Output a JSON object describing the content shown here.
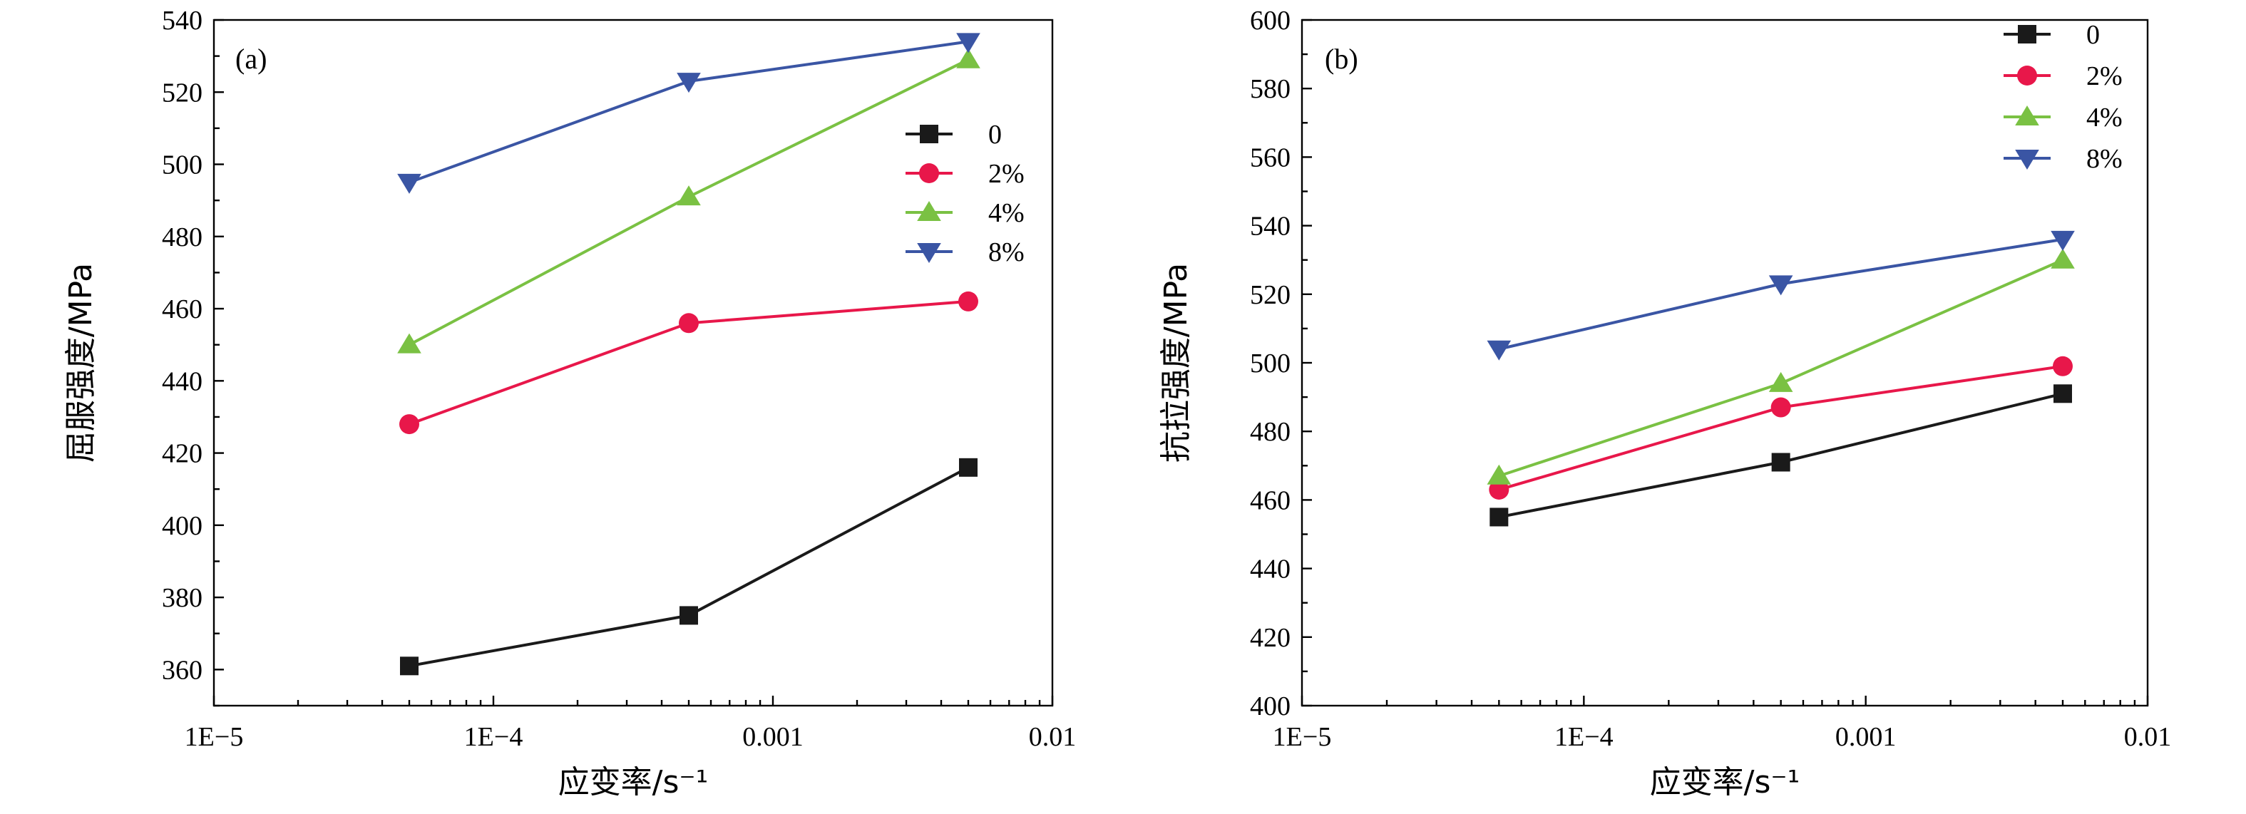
{
  "chart_data": [
    {
      "type": "line",
      "panel_label": "(a)",
      "xlabel": "应变率/s⁻¹",
      "ylabel": "屈服强度/MPa",
      "x_scale": "log",
      "xlim": [
        1e-05,
        0.01
      ],
      "x_ticks": [
        1e-05,
        0.0001,
        0.001,
        0.01
      ],
      "x_tick_labels": [
        "1E−5",
        "1E−4",
        "0.001",
        "0.01"
      ],
      "ylim": [
        350,
        540
      ],
      "y_ticks": [
        360,
        380,
        400,
        420,
        440,
        460,
        480,
        500,
        520,
        540
      ],
      "x": [
        5e-05,
        0.0005,
        0.005
      ],
      "legend_position": "right",
      "series": [
        {
          "name": "0",
          "values": [
            361,
            375,
            416
          ],
          "color": "#1a1a1a",
          "marker": "square"
        },
        {
          "name": "2%",
          "values": [
            428,
            456,
            462
          ],
          "color": "#e8174a",
          "marker": "circle"
        },
        {
          "name": "4%",
          "values": [
            450,
            491,
            529
          ],
          "color": "#7ac143",
          "marker": "triangle-up"
        },
        {
          "name": "8%",
          "values": [
            495,
            523,
            534
          ],
          "color": "#3a55a4",
          "marker": "triangle-down"
        }
      ]
    },
    {
      "type": "line",
      "panel_label": "(b)",
      "xlabel": "应变率/s⁻¹",
      "ylabel": "抗拉强度/MPa",
      "x_scale": "log",
      "xlim": [
        1e-05,
        0.01
      ],
      "x_ticks": [
        1e-05,
        0.0001,
        0.001,
        0.01
      ],
      "x_tick_labels": [
        "1E−5",
        "1E−4",
        "0.001",
        "0.01"
      ],
      "ylim": [
        400,
        600
      ],
      "y_ticks": [
        400,
        420,
        440,
        460,
        480,
        500,
        520,
        540,
        560,
        580,
        600
      ],
      "x": [
        5e-05,
        0.0005,
        0.005
      ],
      "legend_position": "top-right",
      "series": [
        {
          "name": "0",
          "values": [
            455,
            471,
            491
          ],
          "color": "#1a1a1a",
          "marker": "square"
        },
        {
          "name": "2%",
          "values": [
            463,
            487,
            499
          ],
          "color": "#e8174a",
          "marker": "circle"
        },
        {
          "name": "4%",
          "values": [
            467,
            494,
            530
          ],
          "color": "#7ac143",
          "marker": "triangle-up"
        },
        {
          "name": "8%",
          "values": [
            504,
            523,
            536
          ],
          "color": "#3a55a4",
          "marker": "triangle-down"
        }
      ]
    }
  ]
}
